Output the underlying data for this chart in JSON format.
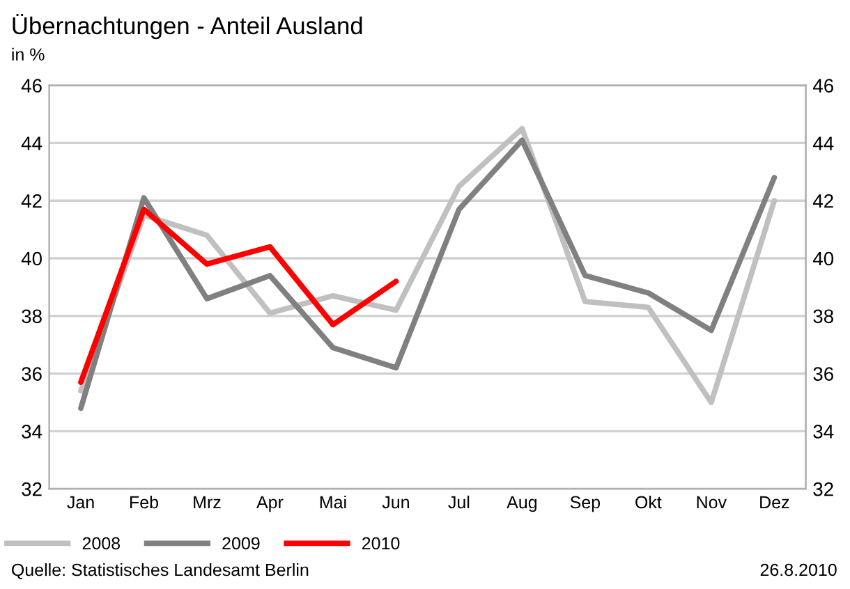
{
  "chart_data": {
    "type": "line",
    "title": "Übernachtungen - Anteil Ausland",
    "ylabel": "in %",
    "categories": [
      "Jan",
      "Feb",
      "Mrz",
      "Apr",
      "Mai",
      "Jun",
      "Jul",
      "Aug",
      "Sep",
      "Okt",
      "Nov",
      "Dez"
    ],
    "series": [
      {
        "name": "2008",
        "color": "#c0c0c0",
        "values": [
          35.4,
          41.5,
          40.8,
          38.1,
          38.7,
          38.2,
          42.5,
          44.5,
          38.5,
          38.3,
          35.0,
          42.0
        ]
      },
      {
        "name": "2009",
        "color": "#808080",
        "values": [
          34.8,
          42.1,
          38.6,
          39.4,
          36.9,
          36.2,
          41.7,
          44.1,
          39.4,
          38.8,
          37.5,
          42.8
        ]
      },
      {
        "name": "2010",
        "color": "#ff0000",
        "values": [
          35.7,
          41.7,
          39.8,
          40.4,
          37.7,
          39.2,
          null,
          null,
          null,
          null,
          null,
          null
        ]
      }
    ],
    "ylim": [
      32,
      46
    ],
    "yticks": [
      32,
      34,
      36,
      38,
      40,
      42,
      44,
      46
    ],
    "y2lim": [
      32,
      46
    ],
    "y2ticks": [
      32,
      34,
      36,
      38,
      40,
      42,
      44,
      46
    ],
    "grid": true,
    "legend": "bottom left",
    "marker": "none",
    "line_style": "solid",
    "annotations": [
      "Quelle: Statistisches Landesamt Berlin",
      "26.8.2010"
    ]
  }
}
